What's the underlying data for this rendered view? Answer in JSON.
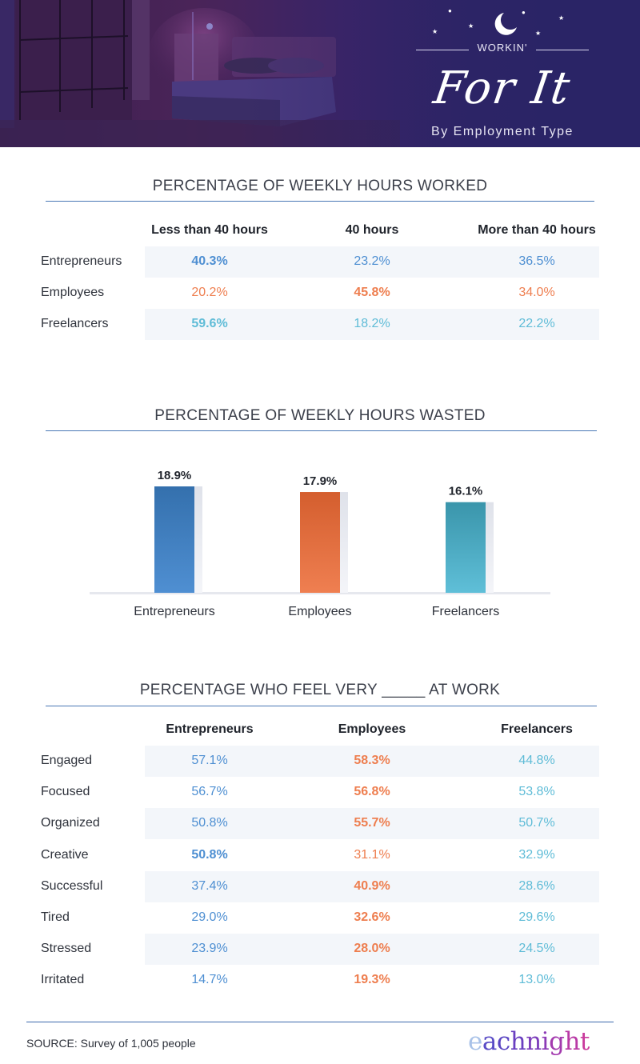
{
  "header": {
    "eyebrow": "WORKIN'",
    "title": "For It",
    "subtitle": "By Employment Type"
  },
  "colors": {
    "entrepreneurs": "#4e8fd2",
    "employees": "#ee7e4f",
    "freelancers": "#5fbcd7",
    "rule": "#4a78b5",
    "band": "#f3f6fa"
  },
  "hours_worked": {
    "title": "PERCENTAGE OF WEEKLY HOURS WORKED",
    "columns": [
      "Less than 40 hours",
      "40 hours",
      "More than 40 hours"
    ],
    "rows": [
      {
        "label": "Entrepreneurs",
        "group": "entrepreneurs",
        "values": [
          "40.3%",
          "23.2%",
          "36.5%"
        ],
        "bold": [
          true,
          false,
          false
        ]
      },
      {
        "label": "Employees",
        "group": "employees",
        "values": [
          "20.2%",
          "45.8%",
          "34.0%"
        ],
        "bold": [
          false,
          true,
          false
        ]
      },
      {
        "label": "Freelancers",
        "group": "freelancers",
        "values": [
          "59.6%",
          "18.2%",
          "22.2%"
        ],
        "bold": [
          true,
          false,
          false
        ]
      }
    ]
  },
  "chart_data": {
    "type": "bar",
    "title": "PERCENTAGE OF WEEKLY HOURS WASTED",
    "categories": [
      "Entrepreneurs",
      "Employees",
      "Freelancers"
    ],
    "values": [
      18.9,
      17.9,
      16.1
    ],
    "value_labels": [
      "18.9%",
      "17.9%",
      "16.1%"
    ],
    "bar_colors": [
      [
        "#3470ad",
        "#4f8fd2"
      ],
      [
        "#d45e2e",
        "#ef7f51"
      ],
      [
        "#3a95ab",
        "#5fbfd8"
      ]
    ],
    "xlabel": "",
    "ylabel": "",
    "ylim": [
      0,
      18.9
    ],
    "grid": false,
    "legend": "none"
  },
  "feelings": {
    "title_prefix": "PERCENTAGE WHO FEEL VERY",
    "title_blank": "_____",
    "title_suffix": "AT WORK",
    "columns": [
      "Entrepreneurs",
      "Employees",
      "Freelancers"
    ],
    "rows": [
      {
        "label": "Engaged",
        "values": [
          "57.1%",
          "58.3%",
          "44.8%"
        ],
        "bold": [
          false,
          true,
          false
        ]
      },
      {
        "label": "Focused",
        "values": [
          "56.7%",
          "56.8%",
          "53.8%"
        ],
        "bold": [
          false,
          true,
          false
        ]
      },
      {
        "label": "Organized",
        "values": [
          "50.8%",
          "55.7%",
          "50.7%"
        ],
        "bold": [
          false,
          true,
          false
        ]
      },
      {
        "label": "Creative",
        "values": [
          "50.8%",
          "31.1%",
          "32.9%"
        ],
        "bold": [
          true,
          false,
          false
        ]
      },
      {
        "label": "Successful",
        "values": [
          "37.4%",
          "40.9%",
          "28.6%"
        ],
        "bold": [
          false,
          true,
          false
        ]
      },
      {
        "label": "Tired",
        "values": [
          "29.0%",
          "32.6%",
          "29.6%"
        ],
        "bold": [
          false,
          true,
          false
        ]
      },
      {
        "label": "Stressed",
        "values": [
          "23.9%",
          "28.0%",
          "24.5%"
        ],
        "bold": [
          false,
          true,
          false
        ]
      },
      {
        "label": "Irritated",
        "values": [
          "14.7%",
          "19.3%",
          "13.0%"
        ],
        "bold": [
          false,
          true,
          false
        ]
      }
    ]
  },
  "footer": {
    "source": "SOURCE: Survey of 1,005 people",
    "logo": "eachnight"
  }
}
